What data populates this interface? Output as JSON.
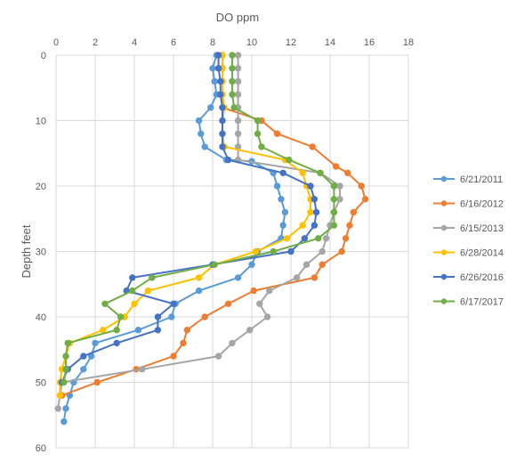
{
  "chart_data": {
    "type": "scatter",
    "title": "",
    "xlabel": "DO ppm",
    "ylabel": "Depth feet",
    "xlim": [
      0,
      18
    ],
    "ylim": [
      0,
      60
    ],
    "y_reversed": true,
    "x_axis_position": "top",
    "x_ticks": [
      "0",
      "2",
      "4",
      "6",
      "8",
      "10",
      "12",
      "14",
      "16",
      "18"
    ],
    "y_ticks": [
      "0",
      "10",
      "20",
      "30",
      "40",
      "50",
      "60"
    ],
    "grid": true,
    "legend_position": "right",
    "series": [
      {
        "name": "6/21/2011",
        "color": "#5B9BD5",
        "points": [
          [
            8.2,
            0
          ],
          [
            8.0,
            2
          ],
          [
            8.1,
            4
          ],
          [
            8.2,
            6
          ],
          [
            7.9,
            8
          ],
          [
            7.3,
            10
          ],
          [
            7.4,
            12
          ],
          [
            7.6,
            14
          ],
          [
            8.7,
            16
          ],
          [
            10.0,
            16.2
          ],
          [
            11.1,
            18
          ],
          [
            11.3,
            20
          ],
          [
            11.5,
            22
          ],
          [
            11.7,
            24
          ],
          [
            11.6,
            26
          ],
          [
            11.5,
            28
          ],
          [
            10.3,
            30
          ],
          [
            10.0,
            32
          ],
          [
            9.3,
            34
          ],
          [
            7.3,
            36
          ],
          [
            6.1,
            38
          ],
          [
            5.9,
            40
          ],
          [
            4.2,
            42
          ],
          [
            2.0,
            44
          ],
          [
            1.8,
            46
          ],
          [
            1.4,
            48
          ],
          [
            0.9,
            50
          ],
          [
            0.7,
            52
          ],
          [
            0.5,
            54
          ],
          [
            0.4,
            56
          ]
        ]
      },
      {
        "name": "6/16/2012",
        "color": "#ED7D31",
        "points": [
          [
            8.5,
            0
          ],
          [
            8.5,
            2
          ],
          [
            8.5,
            4
          ],
          [
            8.5,
            6
          ],
          [
            8.5,
            8
          ],
          [
            10.5,
            10
          ],
          [
            11.3,
            12
          ],
          [
            13.1,
            14
          ],
          [
            14.3,
            17
          ],
          [
            14.9,
            18
          ],
          [
            15.6,
            20
          ],
          [
            15.8,
            22
          ],
          [
            15.2,
            24
          ],
          [
            15.0,
            26
          ],
          [
            14.8,
            28
          ],
          [
            14.6,
            30
          ],
          [
            13.6,
            32
          ],
          [
            13.2,
            34
          ],
          [
            10.1,
            36
          ],
          [
            8.8,
            38
          ],
          [
            7.6,
            40
          ],
          [
            6.7,
            42
          ],
          [
            6.5,
            44
          ],
          [
            6.0,
            46
          ],
          [
            4.1,
            48
          ],
          [
            2.1,
            50
          ],
          [
            0.3,
            52
          ]
        ]
      },
      {
        "name": "6/15/2013",
        "color": "#A5A5A5",
        "points": [
          [
            9.3,
            0
          ],
          [
            9.3,
            2
          ],
          [
            9.3,
            4
          ],
          [
            9.3,
            6
          ],
          [
            9.3,
            8
          ],
          [
            9.3,
            10
          ],
          [
            9.3,
            12
          ],
          [
            9.3,
            14
          ],
          [
            9.3,
            16
          ],
          [
            13.5,
            18
          ],
          [
            14.5,
            20
          ],
          [
            14.5,
            22
          ],
          [
            14.2,
            24
          ],
          [
            14.0,
            26
          ],
          [
            13.8,
            28
          ],
          [
            13.6,
            30
          ],
          [
            12.8,
            32
          ],
          [
            12.3,
            34
          ],
          [
            10.9,
            36
          ],
          [
            10.4,
            38
          ],
          [
            10.8,
            40
          ],
          [
            9.9,
            42
          ],
          [
            9.0,
            44
          ],
          [
            8.3,
            46
          ],
          [
            4.4,
            48
          ],
          [
            0.3,
            50
          ],
          [
            0.1,
            54
          ]
        ]
      },
      {
        "name": "6/28/2014",
        "color": "#FFC000",
        "points": [
          [
            8.5,
            0
          ],
          [
            8.5,
            2
          ],
          [
            8.5,
            4
          ],
          [
            8.5,
            6
          ],
          [
            8.6,
            8
          ],
          [
            8.5,
            10
          ],
          [
            8.5,
            12
          ],
          [
            8.6,
            14
          ],
          [
            11.7,
            16
          ],
          [
            12.6,
            18
          ],
          [
            12.8,
            20
          ],
          [
            13.0,
            22
          ],
          [
            13.0,
            24
          ],
          [
            12.6,
            26
          ],
          [
            11.8,
            28
          ],
          [
            10.2,
            30
          ],
          [
            8.1,
            32
          ],
          [
            7.3,
            34
          ],
          [
            4.7,
            36
          ],
          [
            4.0,
            38
          ],
          [
            3.5,
            40
          ],
          [
            2.4,
            42
          ],
          [
            0.7,
            44
          ],
          [
            0.5,
            46
          ],
          [
            0.3,
            48
          ],
          [
            0.2,
            50
          ],
          [
            0.2,
            52
          ]
        ]
      },
      {
        "name": "6/26/2016",
        "color": "#4472C4",
        "points": [
          [
            8.3,
            0
          ],
          [
            8.3,
            2
          ],
          [
            8.4,
            4
          ],
          [
            8.4,
            6
          ],
          [
            8.5,
            8
          ],
          [
            8.5,
            10
          ],
          [
            8.5,
            12
          ],
          [
            8.5,
            14
          ],
          [
            8.8,
            16
          ],
          [
            11.6,
            18
          ],
          [
            13.0,
            20
          ],
          [
            13.2,
            22
          ],
          [
            13.3,
            24
          ],
          [
            13.2,
            26
          ],
          [
            12.7,
            28
          ],
          [
            12.0,
            30
          ],
          [
            8.0,
            32
          ],
          [
            3.9,
            34
          ],
          [
            3.6,
            36
          ],
          [
            6.0,
            38
          ],
          [
            5.2,
            40
          ],
          [
            5.2,
            42
          ],
          [
            3.1,
            44
          ],
          [
            1.4,
            46
          ],
          [
            0.6,
            48
          ],
          [
            0.3,
            50
          ]
        ]
      },
      {
        "name": "6/17/2017",
        "color": "#70AD47",
        "points": [
          [
            9.0,
            0
          ],
          [
            9.0,
            2
          ],
          [
            9.0,
            4
          ],
          [
            9.0,
            6
          ],
          [
            9.1,
            8
          ],
          [
            10.3,
            10
          ],
          [
            10.3,
            12
          ],
          [
            10.5,
            14
          ],
          [
            11.9,
            16
          ],
          [
            13.5,
            18
          ],
          [
            14.2,
            20
          ],
          [
            14.2,
            22
          ],
          [
            14.2,
            24
          ],
          [
            14.2,
            26
          ],
          [
            13.4,
            28
          ],
          [
            11.1,
            30
          ],
          [
            8.1,
            32
          ],
          [
            4.9,
            34
          ],
          [
            3.9,
            36
          ],
          [
            2.5,
            38
          ],
          [
            3.3,
            40
          ],
          [
            3.1,
            42
          ],
          [
            0.6,
            44
          ],
          [
            0.5,
            46
          ],
          [
            0.5,
            48
          ],
          [
            0.4,
            50
          ]
        ]
      }
    ]
  }
}
